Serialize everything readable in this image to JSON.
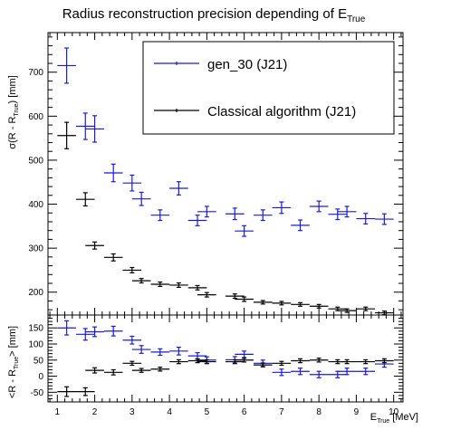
{
  "title": "Radius reconstruction precision depending of E",
  "title_sub": "True",
  "top_ylabel_main": "σ(R - R",
  "top_ylabel_sub": "True",
  "top_ylabel_tail": ") [mm]",
  "bottom_ylabel_main": "<R - R",
  "bottom_ylabel_sub": "True",
  "bottom_ylabel_tail": "> [mm]",
  "xlabel_main": "E",
  "xlabel_sub": "True",
  "xlabel_tail": " [MeV]",
  "legend": {
    "gen": "gen_30 (J21)",
    "classical": "Classical algorithm (J21)"
  },
  "colors": {
    "gen": "#1a1ad6",
    "classical": "#000000"
  },
  "chart_data": [
    {
      "type": "scatter",
      "panel": "top",
      "xlim": [
        0.75,
        10.25
      ],
      "ylim": [
        148,
        790
      ],
      "x_ticks": [
        1,
        2,
        3,
        4,
        5,
        6,
        7,
        8,
        9,
        10
      ],
      "y_ticks": [
        200,
        300,
        400,
        500,
        600,
        700
      ],
      "x_err": 0.25,
      "series": [
        {
          "name": "gen_30 (J21)",
          "color": "#1a1ad6",
          "x": [
            1.25,
            1.75,
            2.0,
            2.5,
            3.0,
            3.25,
            3.75,
            4.25,
            4.75,
            5.0,
            5.75,
            6.0,
            6.5,
            7.0,
            7.5,
            8.0,
            8.5,
            8.75,
            9.25,
            9.75
          ],
          "y": [
            715,
            577,
            571,
            471,
            448,
            412,
            375,
            436,
            363,
            383,
            378,
            339,
            375,
            392,
            352,
            395,
            377,
            383,
            367,
            366
          ],
          "yerr": [
            40,
            30,
            30,
            20,
            18,
            15,
            12,
            15,
            12,
            12,
            13,
            12,
            12,
            13,
            12,
            12,
            12,
            12,
            12,
            12
          ]
        },
        {
          "name": "Classical algorithm (J21)",
          "color": "#000000",
          "x": [
            1.25,
            1.75,
            2.0,
            2.5,
            3.0,
            3.25,
            3.75,
            4.25,
            4.75,
            5.0,
            5.75,
            6.0,
            6.5,
            7.0,
            7.5,
            8.0,
            8.5,
            8.75,
            9.25,
            9.75
          ],
          "y": [
            556,
            411,
            306,
            279,
            250,
            226,
            218,
            216,
            210,
            194,
            191,
            184,
            177,
            175,
            172,
            168,
            162,
            158,
            162,
            153
          ],
          "yerr": [
            30,
            15,
            8,
            8,
            6,
            5,
            5,
            5,
            5,
            5,
            5,
            5,
            4,
            4,
            4,
            4,
            4,
            4,
            4,
            4
          ]
        }
      ]
    },
    {
      "type": "scatter",
      "panel": "bottom",
      "xlim": [
        0.75,
        10.25
      ],
      "ylim": [
        -80,
        190
      ],
      "x_ticks": [
        1,
        2,
        3,
        4,
        5,
        6,
        7,
        8,
        9,
        10
      ],
      "y_ticks": [
        -50,
        0,
        50,
        100,
        150
      ],
      "x_err": 0.25,
      "series": [
        {
          "name": "gen_30 (J21)",
          "color": "#1a1ad6",
          "x": [
            1.25,
            1.75,
            2.0,
            2.5,
            3.0,
            3.25,
            3.75,
            4.25,
            4.75,
            5.0,
            5.75,
            6.0,
            6.5,
            7.0,
            7.5,
            8.0,
            8.5,
            8.75,
            9.25,
            9.75
          ],
          "y": [
            150,
            130,
            138,
            140,
            112,
            83,
            75,
            78,
            63,
            50,
            51,
            68,
            40,
            12,
            15,
            5,
            5,
            15,
            15,
            38
          ],
          "yerr": [
            22,
            18,
            15,
            15,
            12,
            12,
            10,
            12,
            10,
            10,
            10,
            10,
            10,
            10,
            10,
            10,
            10,
            10,
            10,
            10
          ]
        },
        {
          "name": "Classical algorithm (J21)",
          "color": "#000000",
          "x": [
            1.25,
            1.75,
            2.0,
            2.5,
            3.0,
            3.25,
            3.75,
            4.25,
            4.75,
            5.0,
            5.75,
            6.0,
            6.5,
            7.0,
            7.5,
            8.0,
            8.5,
            8.75,
            9.25,
            9.75
          ],
          "y": [
            -48,
            -48,
            18,
            12,
            40,
            18,
            22,
            45,
            48,
            45,
            45,
            50,
            35,
            40,
            48,
            50,
            45,
            45,
            45,
            48
          ],
          "yerr": [
            15,
            12,
            8,
            8,
            6,
            6,
            6,
            6,
            6,
            6,
            6,
            6,
            6,
            6,
            6,
            6,
            6,
            6,
            6,
            6
          ]
        }
      ]
    }
  ]
}
